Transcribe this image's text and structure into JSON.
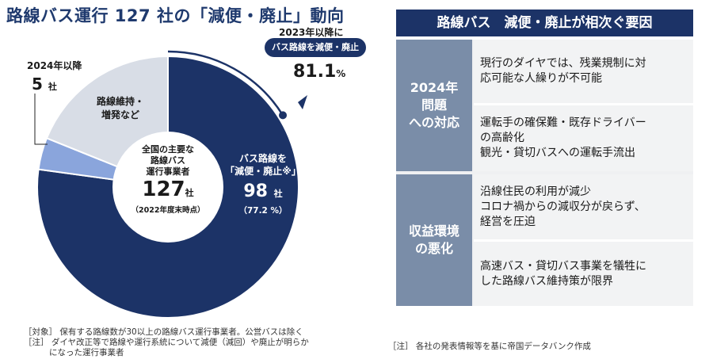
{
  "title": "路線バス運行 127 社の「減便・廃止」動向",
  "chart_data": {
    "type": "pie",
    "title": "路線バス運行 127 社の「減便・廃止」動向",
    "total_label_lines": [
      "全国の主要な",
      "路線バス",
      "運行事業者"
    ],
    "total_value": "127",
    "total_unit": "社",
    "total_note": "（2022年度末時点）",
    "categories": [
      "バス路線を「減便・廃止※」",
      "2024年以降",
      "路線維持・増発など"
    ],
    "values": [
      98,
      5,
      24
    ],
    "colors": [
      "#1c3367",
      "#8aa5dc",
      "#d8dde6"
    ],
    "reduce_label_lines": [
      "バス路線を",
      "「減便・廃止※」"
    ],
    "reduce_value": "98",
    "reduce_unit": "社",
    "reduce_pct": "（77.2 %）",
    "maintain_label_lines": [
      "路線維持・",
      "増発など"
    ],
    "after2024_label": "2024年以降",
    "after2024_value": "5",
    "after2024_unit": "社",
    "since2023_label": "2023年以降に",
    "since2023_pill": "バス路線を減便・廃止",
    "since2023_value": "81.1",
    "since2023_unit": "%"
  },
  "footnotes": {
    "target": "［対象］ 保有する路線数が30以上の路線バス運行事業者。公営バスは除く",
    "note1": "［注］ ダイヤ改正等で路線や運行系統について減便（減回）や廃止が明らか",
    "note2": "になった運行事業者"
  },
  "panel": {
    "title": "路線バス　減便・廃止が相次ぐ要因",
    "sections": [
      {
        "label": "2024年\n問題\nへの対応",
        "items": [
          "現行のダイヤでは、残業規制に対\n応可能な人繰りが不可能",
          "運転手の確保難・既存ドライバー\nの高齢化\n観光・貸切バスへの運転手流出"
        ]
      },
      {
        "label": "収益環境\nの悪化",
        "items": [
          "沿線住民の利用が減少\nコロナ禍からの減収分が戻らず、\n経営を圧迫",
          "高速バス・貸切バス事業を犠牲に\nした路線バス維持策が限界"
        ]
      }
    ]
  },
  "right_footnote": "［注］ 各社の発表情報等を基に帝国データバンク作成"
}
